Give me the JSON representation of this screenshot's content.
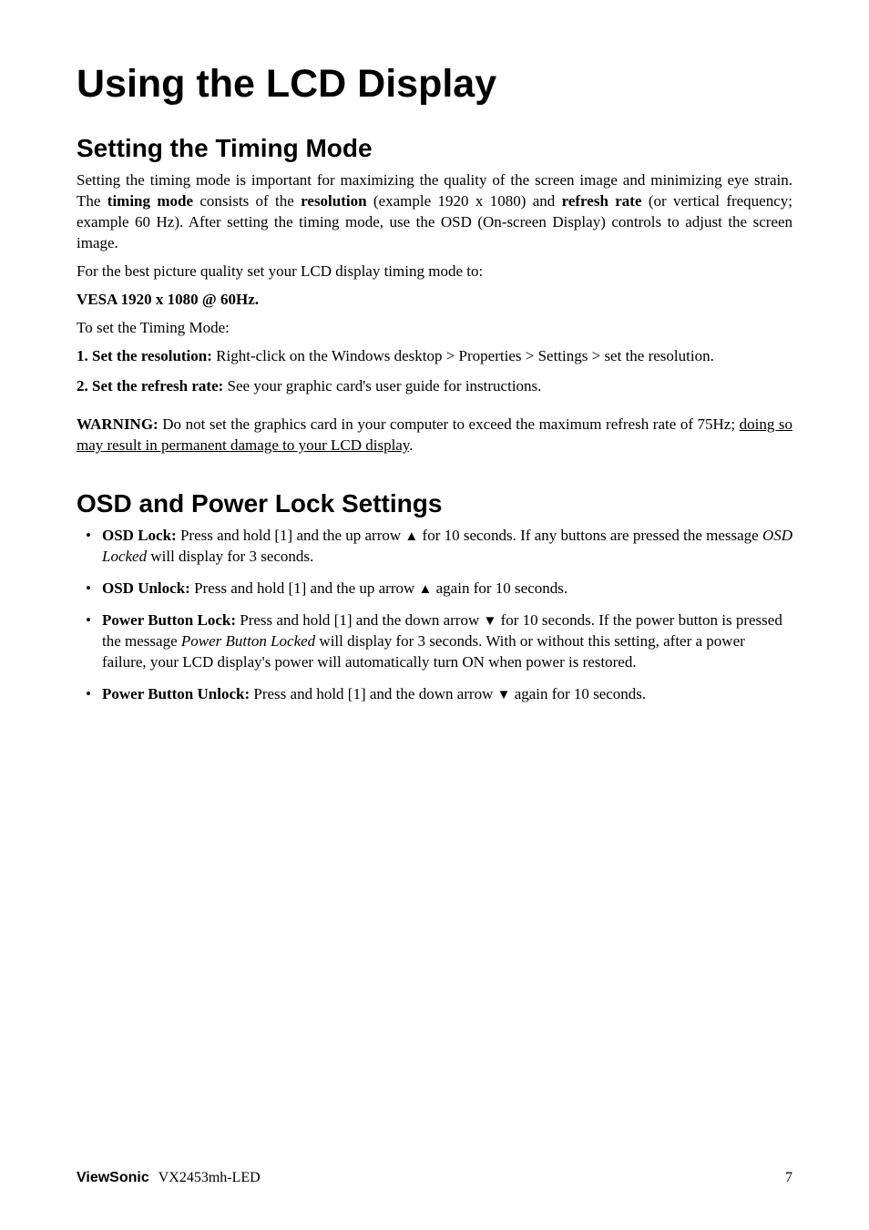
{
  "title": "Using the LCD Display",
  "s1": {
    "heading": "Setting the Timing Mode",
    "p1a": "Setting the timing mode is important for maximizing the quality of the screen image and minimizing eye strain. The ",
    "p1b": "timing mode",
    "p1c": " consists of the ",
    "p1d": "resolution",
    "p1e": " (example 1920 x 1080) and ",
    "p1f": "refresh rate",
    "p1g": " (or vertical frequency; example 60 Hz). After setting the timing mode, use the OSD (On-screen Display) controls to adjust the screen image.",
    "p2": "For the best picture quality set your LCD display timing mode to:",
    "p3": "VESA 1920 x 1080 @ 60Hz.",
    "p4": "To set the Timing Mode:",
    "step1_num": "1.  ",
    "step1_b": "Set the resolution:",
    "step1_t": " Right-click on the Windows desktop > Properties > Settings > set the resolution.",
    "step2_num": "2.   ",
    "step2_b": "Set the refresh rate:",
    "step2_t": " See your graphic card's user guide for instructions.",
    "warn_b": "WARNING:",
    "warn_t": " Do not set the graphics card in your computer to exceed the maximum refresh rate of 75Hz; ",
    "warn_u": "doing so may result in permanent damage to your LCD display",
    "warn_end": "."
  },
  "s2": {
    "heading": "OSD and Power Lock Settings",
    "b1_b": "OSD Lock:",
    "b1_t1": " Press and hold [1] and the up arrow ",
    "b1_arrow": "▲",
    "b1_t2": " for 10 seconds. If any buttons are pressed the message ",
    "b1_i": "OSD Locked",
    "b1_t3": " will display for 3 seconds.",
    "b2_b": "OSD Unlock:",
    "b2_t1": " Press and hold [1] and the up arrow ",
    "b2_arrow": "▲",
    "b2_t2": " again for 10 seconds.",
    "b3_b": "Power Button Lock:",
    "b3_t1": " Press and hold [1] and the down arrow ",
    "b3_arrow": "▼",
    "b3_t2": " for 10 seconds. If the power button is pressed the message ",
    "b3_i": "Power Button Locked",
    "b3_t3": " will display for 3 seconds. With or without this setting, after a power failure, your LCD display's power will automatically turn ON when power is restored.",
    "b4_b": "Power Button Unlock:",
    "b4_t1": " Press and hold [1] and the down arrow ",
    "b4_arrow": "▼",
    "b4_t2": " again for 10 seconds."
  },
  "footer": {
    "brand": "ViewSonic",
    "model": "VX2453mh-LED",
    "page": "7"
  }
}
